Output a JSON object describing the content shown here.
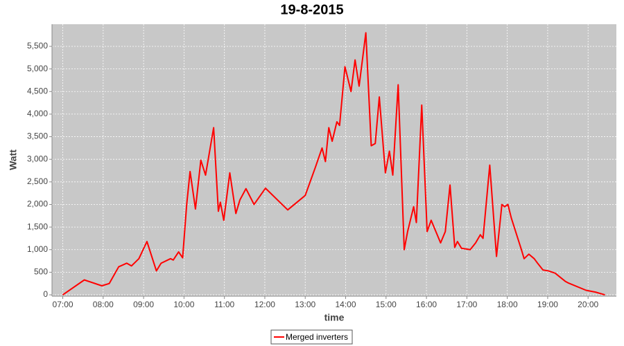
{
  "chart_data": {
    "type": "line",
    "title": "19-8-2015",
    "x_label": "time",
    "y_label": "Watt",
    "x": [
      "07:00",
      "07:32",
      "07:58",
      "08:09",
      "08:23",
      "08:35",
      "08:42",
      "08:53",
      "09:05",
      "09:19",
      "09:26",
      "09:40",
      "09:44",
      "09:52",
      "09:58",
      "10:04",
      "10:09",
      "10:17",
      "10:25",
      "10:32",
      "10:44",
      "10:51",
      "10:54",
      "10:59",
      "11:08",
      "11:17",
      "11:23",
      "11:32",
      "11:44",
      "12:01",
      "12:34",
      "13:00",
      "13:15",
      "13:25",
      "13:30",
      "13:35",
      "13:40",
      "13:47",
      "13:51",
      "13:59",
      "14:08",
      "14:14",
      "14:20",
      "14:30",
      "14:38",
      "14:44",
      "14:50",
      "14:59",
      "15:05",
      "15:10",
      "15:18",
      "15:27",
      "15:32",
      "15:41",
      "15:45",
      "15:53",
      "16:01",
      "16:07",
      "16:21",
      "16:28",
      "16:35",
      "16:42",
      "16:46",
      "16:52",
      "17:05",
      "17:13",
      "17:20",
      "17:24",
      "17:34",
      "17:44",
      "17:52",
      "17:56",
      "18:01",
      "18:06",
      "18:21",
      "18:25",
      "18:32",
      "18:40",
      "18:45",
      "18:53",
      "19:01",
      "19:11",
      "19:26",
      "19:31",
      "19:57",
      "20:11",
      "20:25"
    ],
    "series": [
      {
        "name": "Merged inverters",
        "color": "#ff0000",
        "values": [
          0,
          330,
          200,
          250,
          620,
          700,
          640,
          800,
          1180,
          530,
          700,
          800,
          770,
          950,
          820,
          2000,
          2730,
          1900,
          2980,
          2650,
          3700,
          1850,
          2050,
          1650,
          2700,
          1800,
          2100,
          2350,
          2000,
          2360,
          1880,
          2200,
          2820,
          3250,
          2950,
          3700,
          3400,
          3830,
          3750,
          5050,
          4500,
          5200,
          4620,
          5800,
          3300,
          3350,
          4380,
          2700,
          3180,
          2650,
          4650,
          1000,
          1400,
          1950,
          1600,
          4200,
          1400,
          1650,
          1150,
          1400,
          2430,
          1050,
          1180,
          1030,
          1000,
          1150,
          1330,
          1250,
          2870,
          850,
          2000,
          1950,
          2000,
          1700,
          1000,
          800,
          900,
          800,
          700,
          550,
          530,
          480,
          300,
          260,
          100,
          60,
          0
        ]
      }
    ],
    "xlim": [
      "06:44",
      "20:42"
    ],
    "xticks": [
      "07:00",
      "08:00",
      "09:00",
      "10:00",
      "11:00",
      "12:00",
      "13:00",
      "14:00",
      "15:00",
      "16:00",
      "17:00",
      "18:00",
      "19:00",
      "20:00"
    ],
    "ylim": [
      -30,
      5990
    ],
    "yticks": [
      0,
      500,
      {
        "value": 1000,
        "label": "1,000"
      },
      {
        "value": 1500,
        "label": "1,500"
      },
      {
        "value": 2000,
        "label": "2,000"
      },
      {
        "value": 2500,
        "label": "2,500"
      },
      {
        "value": 3000,
        "label": "3,000"
      },
      {
        "value": 3500,
        "label": "3,500"
      },
      {
        "value": 4000,
        "label": "4,000"
      },
      {
        "value": 4500,
        "label": "4,500"
      },
      {
        "value": 5000,
        "label": "5,000"
      },
      {
        "value": 5500,
        "label": "5,500"
      }
    ],
    "grid": true
  }
}
